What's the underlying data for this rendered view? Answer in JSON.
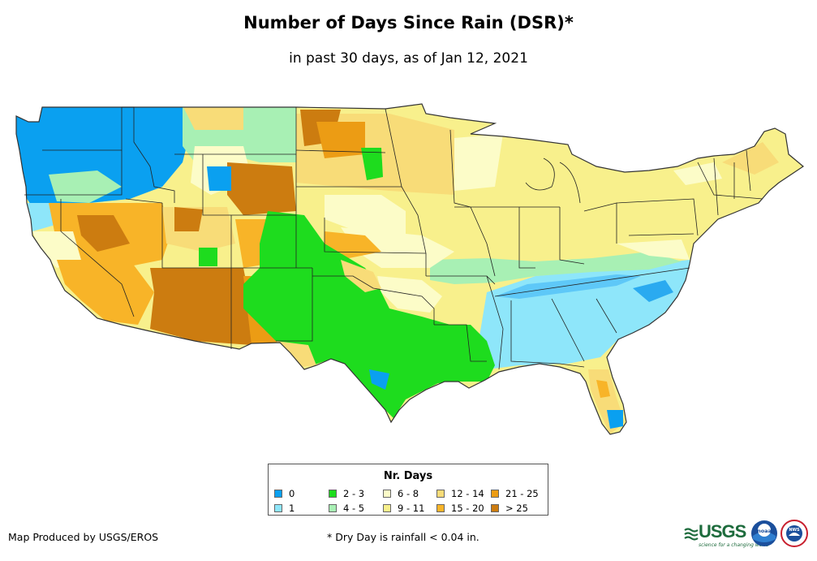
{
  "header": {
    "title": "Number of Days Since Rain (DSR)*",
    "subtitle": "in past 30 days, as of Jan 12, 2021"
  },
  "legend": {
    "title": "Nr. Days",
    "items": [
      {
        "label": "0",
        "color": "#0aa0f0"
      },
      {
        "label": "1",
        "color": "#8ee6fa"
      },
      {
        "label": "2 - 3",
        "color": "#1edc1e"
      },
      {
        "label": "4 - 5",
        "color": "#a8f0b4"
      },
      {
        "label": "6 - 8",
        "color": "#fcfcc8"
      },
      {
        "label": "9 - 11",
        "color": "#f8f08c"
      },
      {
        "label": "12 - 14",
        "color": "#f8dc78"
      },
      {
        "label": "15 - 20",
        "color": "#f8b428"
      },
      {
        "label": "21 - 25",
        "color": "#ec9c14"
      },
      {
        "label": "> 25",
        "color": "#cc7c10"
      }
    ]
  },
  "footer": {
    "credit": "Map Produced by USGS/EROS",
    "note": "* Dry Day is rainfall < 0.04 in."
  },
  "logos": {
    "usgs": "USGS",
    "usgs_tagline": "science for a changing world",
    "noaa": "noaa",
    "nws": "NWS"
  }
}
